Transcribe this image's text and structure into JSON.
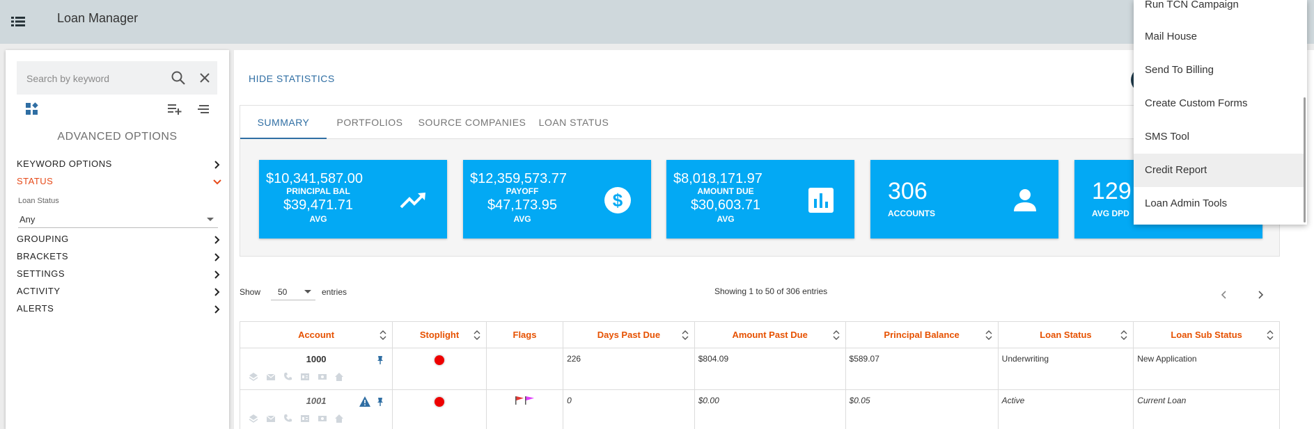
{
  "app": {
    "title": "Loan Manager"
  },
  "sidebar": {
    "search_placeholder": "Search by keyword",
    "advanced_title": "ADVANCED OPTIONS",
    "options": {
      "keyword": "KEYWORD OPTIONS",
      "status": "STATUS",
      "grouping": "GROUPING",
      "brackets": "BRACKETS",
      "settings": "SETTINGS",
      "activity": "ACTIVITY",
      "alerts": "ALERTS"
    },
    "status_field": {
      "label": "Loan Status",
      "value": "Any"
    }
  },
  "main": {
    "hide_statistics": "HIDE STATISTICS",
    "tabs": [
      {
        "label": "SUMMARY",
        "active": true
      },
      {
        "label": "PORTFOLIOS",
        "active": false
      },
      {
        "label": "SOURCE COMPANIES",
        "active": false
      },
      {
        "label": "LOAN STATUS",
        "active": false
      }
    ],
    "stats": [
      {
        "total": "$10,341,587.00",
        "label": "PRINCIPAL BAL",
        "avg": "$39,471.71",
        "avg_label": "AVG",
        "icon": "trending-up-icon"
      },
      {
        "total": "$12,359,573.77",
        "label": "PAYOFF",
        "avg": "$47,173.95",
        "avg_label": "AVG",
        "icon": "dollar-icon"
      },
      {
        "total": "$8,018,171.97",
        "label": "AMOUNT DUE",
        "avg": "$30,603.71",
        "avg_label": "AVG",
        "icon": "bar-chart-icon"
      },
      {
        "value": "306",
        "label": "ACCOUNTS",
        "icon": "person-icon"
      },
      {
        "value": "129",
        "label": "AVG DPD"
      }
    ],
    "table_controls": {
      "show_label": "Show",
      "page_size": "50",
      "entries_label": "entries",
      "showing": "Showing 1 to 50 of 306 entries"
    },
    "table": {
      "headers": [
        "Account",
        "Stoplight",
        "Flags",
        "Days Past Due",
        "Amount Past Due",
        "Principal Balance",
        "Loan Status",
        "Loan Sub Status"
      ],
      "rows": [
        {
          "account": "1000",
          "days": "226",
          "amount_past_due": "$804.09",
          "principal": "$589.07",
          "status": "Underwriting",
          "sub_status": "New Application"
        },
        {
          "account": "1001",
          "days": "0",
          "amount_past_due": "$0.00",
          "principal": "$0.05",
          "status": "Active",
          "sub_status": "Current Loan"
        }
      ]
    }
  },
  "dropdown": {
    "items": [
      "Run TCN Campaign",
      "Mail House",
      "Send To Billing",
      "Create Custom Forms",
      "SMS Tool",
      "Credit Report",
      "Loan Admin Tools"
    ],
    "highlighted": "Credit Report"
  },
  "colors": {
    "accent": "#03a9f4",
    "link": "#2f6ea3",
    "header_text": "#e65100",
    "status_active": "#e64a19",
    "topbar": "#cfd8dc"
  }
}
